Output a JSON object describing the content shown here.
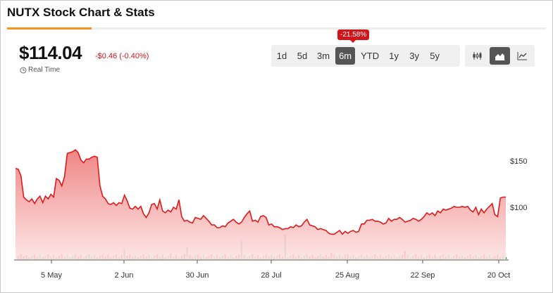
{
  "header": {
    "title": "NUTX Stock Chart & Stats"
  },
  "quote": {
    "price": "$114.04",
    "change": "-$0.46 (-0.40%)",
    "realtime_label": "Real Time"
  },
  "ranges": {
    "items": [
      "1d",
      "5d",
      "3m",
      "6m",
      "YTD",
      "1y",
      "3y",
      "5y"
    ],
    "active": "6m",
    "active_change": "-21.58%"
  },
  "chart_types": [
    {
      "icon": "candlestick-icon",
      "active": false
    },
    {
      "icon": "area-chart-icon",
      "active": true
    },
    {
      "icon": "line-chart-icon",
      "active": false
    }
  ],
  "colors": {
    "accent": "#f7931e",
    "line": "#e01a1a",
    "area_top": "#f08a8a",
    "down": "#d0161b",
    "up": "#2ea84a"
  },
  "chart_data": {
    "type": "area",
    "x_tick_labels": [
      "5 May",
      "2 Jun",
      "30 Jun",
      "28 Jul",
      "25 Aug",
      "22 Sep",
      "20 Oct"
    ],
    "y_tick_labels": [
      "$150",
      "$100"
    ],
    "y_ticks": [
      150,
      100
    ],
    "ylim": [
      44,
      178
    ],
    "price": [
      142,
      141,
      134,
      111,
      108,
      106,
      109,
      104,
      109,
      112,
      105,
      112,
      109,
      114,
      111,
      131,
      129,
      123,
      133,
      158,
      159,
      160,
      162,
      159,
      151,
      148,
      152,
      152,
      154,
      155,
      154,
      123,
      112,
      109,
      104,
      103,
      105,
      102,
      105,
      104,
      113,
      107,
      99,
      98,
      101,
      98,
      101,
      93,
      89,
      94,
      103,
      104,
      98,
      108,
      96,
      94,
      97,
      95,
      100,
      98,
      108,
      90,
      85,
      86,
      84,
      83,
      89,
      88,
      87,
      91,
      88,
      85,
      81,
      81,
      78,
      78,
      80,
      79,
      83,
      85,
      87,
      84,
      82,
      84,
      89,
      93,
      96,
      85,
      86,
      84,
      90,
      91,
      89,
      81,
      82,
      79,
      79,
      78,
      76,
      77,
      77,
      79,
      78,
      81,
      79,
      80,
      84,
      87,
      81,
      80,
      79,
      76,
      77,
      76,
      75,
      72,
      71,
      71,
      73,
      75,
      71,
      74,
      72,
      74,
      75,
      73,
      74,
      82,
      82,
      86,
      86,
      87,
      85,
      85,
      84,
      82,
      83,
      88,
      85,
      87,
      87,
      89,
      87,
      84,
      85,
      86,
      88,
      87,
      85,
      87,
      90,
      94,
      92,
      94,
      91,
      96,
      94,
      98,
      97,
      98,
      99,
      101,
      100,
      100,
      101,
      100,
      101,
      97,
      95,
      100,
      92,
      98,
      94,
      98,
      101,
      104,
      92,
      90,
      110,
      111,
      111
    ],
    "volume_note": "Daily volume bars along the bottom (red = down day, green = up day)."
  }
}
